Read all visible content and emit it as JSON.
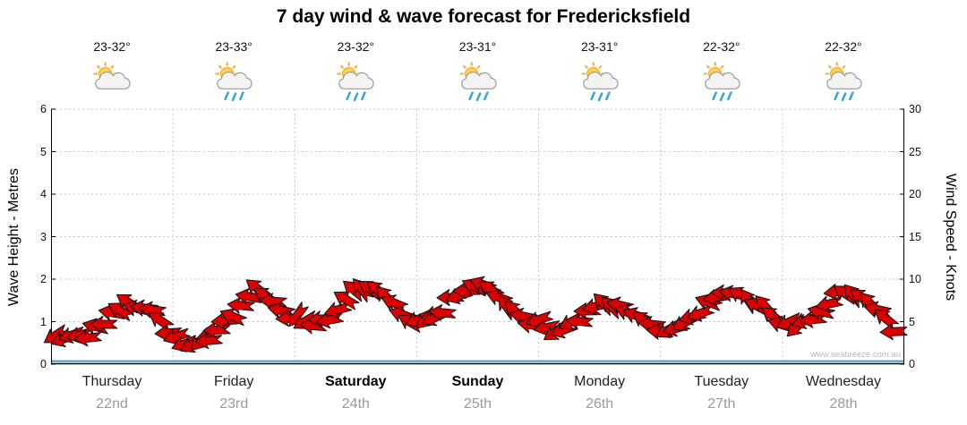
{
  "title": "7 day wind & wave forecast for Fredericksfield",
  "watermark": "www.seabreeze.com.au",
  "axes": {
    "left_label": "Wave Height - Metres",
    "right_label": "Wind Speed - Knots",
    "left_ticks": [
      "0",
      "1",
      "2",
      "3",
      "4",
      "5",
      "6"
    ],
    "right_ticks": [
      "0",
      "5",
      "10",
      "15",
      "20",
      "25",
      "30"
    ]
  },
  "days": [
    {
      "name": "Thursday",
      "date": "22nd",
      "temp": "23-32°",
      "icon": "sun-cloud",
      "bold": false
    },
    {
      "name": "Friday",
      "date": "23rd",
      "temp": "23-33°",
      "icon": "sun-cloud-rain",
      "bold": false
    },
    {
      "name": "Saturday",
      "date": "24th",
      "temp": "23-32°",
      "icon": "sun-cloud-rain",
      "bold": true
    },
    {
      "name": "Sunday",
      "date": "25th",
      "temp": "23-31°",
      "icon": "sun-cloud-rain",
      "bold": true
    },
    {
      "name": "Monday",
      "date": "26th",
      "temp": "23-31°",
      "icon": "sun-cloud-rain",
      "bold": false
    },
    {
      "name": "Tuesday",
      "date": "27th",
      "temp": "22-32°",
      "icon": "sun-cloud-rain",
      "bold": false
    },
    {
      "name": "Wednesday",
      "date": "28th",
      "temp": "22-32°",
      "icon": "sun-cloud-rain",
      "bold": false
    }
  ],
  "chart_data": {
    "type": "line",
    "style": "wind-barb-ribbon",
    "title": "7 day wind & wave forecast for Fredericksfield",
    "xlabel": "",
    "ylabel_left": "Wave Height - Metres",
    "ylabel_right": "Wind Speed - Knots",
    "ylim_left_metres": [
      0,
      6
    ],
    "ylim_right_knots": [
      0,
      30
    ],
    "grid": true,
    "categories": [
      "Thursday 22nd",
      "Friday 23rd",
      "Saturday 24th",
      "Sunday 25th",
      "Monday 26th",
      "Tuesday 27th",
      "Wednesday 28th"
    ],
    "samples_per_day": 8,
    "wind_speed_knots": [
      3.5,
      3.0,
      3.5,
      5.0,
      6.5,
      7.0,
      6.5,
      4.0,
      2.5,
      2.0,
      3.0,
      5.0,
      7.0,
      8.5,
      8.0,
      6.0,
      5.0,
      4.5,
      6.0,
      8.0,
      9.0,
      8.5,
      7.0,
      5.5,
      5.0,
      6.0,
      8.0,
      9.5,
      9.0,
      7.5,
      6.0,
      5.0,
      4.5,
      4.0,
      5.0,
      6.5,
      7.0,
      6.5,
      5.5,
      4.5,
      4.0,
      4.5,
      6.0,
      7.5,
      8.5,
      8.0,
      7.0,
      5.5,
      4.5,
      5.0,
      6.5,
      8.0,
      8.5,
      8.0,
      6.0,
      3.5
    ],
    "wind_direction_deg": [
      150,
      160,
      175,
      190,
      205,
      215,
      210,
      200,
      145,
      155,
      170,
      185,
      200,
      210,
      205,
      195,
      150,
      165,
      180,
      195,
      210,
      215,
      205,
      190,
      155,
      165,
      180,
      195,
      205,
      215,
      210,
      195,
      150,
      160,
      175,
      190,
      200,
      210,
      205,
      195,
      145,
      160,
      175,
      190,
      205,
      215,
      210,
      200,
      150,
      160,
      175,
      190,
      205,
      210,
      200,
      185
    ],
    "wave_height_m": 0.07,
    "colors": {
      "barb": "#dd0000",
      "barb_outline": "#111111",
      "wave_line": "#35a3c2",
      "grid": "#bcc8dc",
      "axis": "#000000"
    }
  }
}
